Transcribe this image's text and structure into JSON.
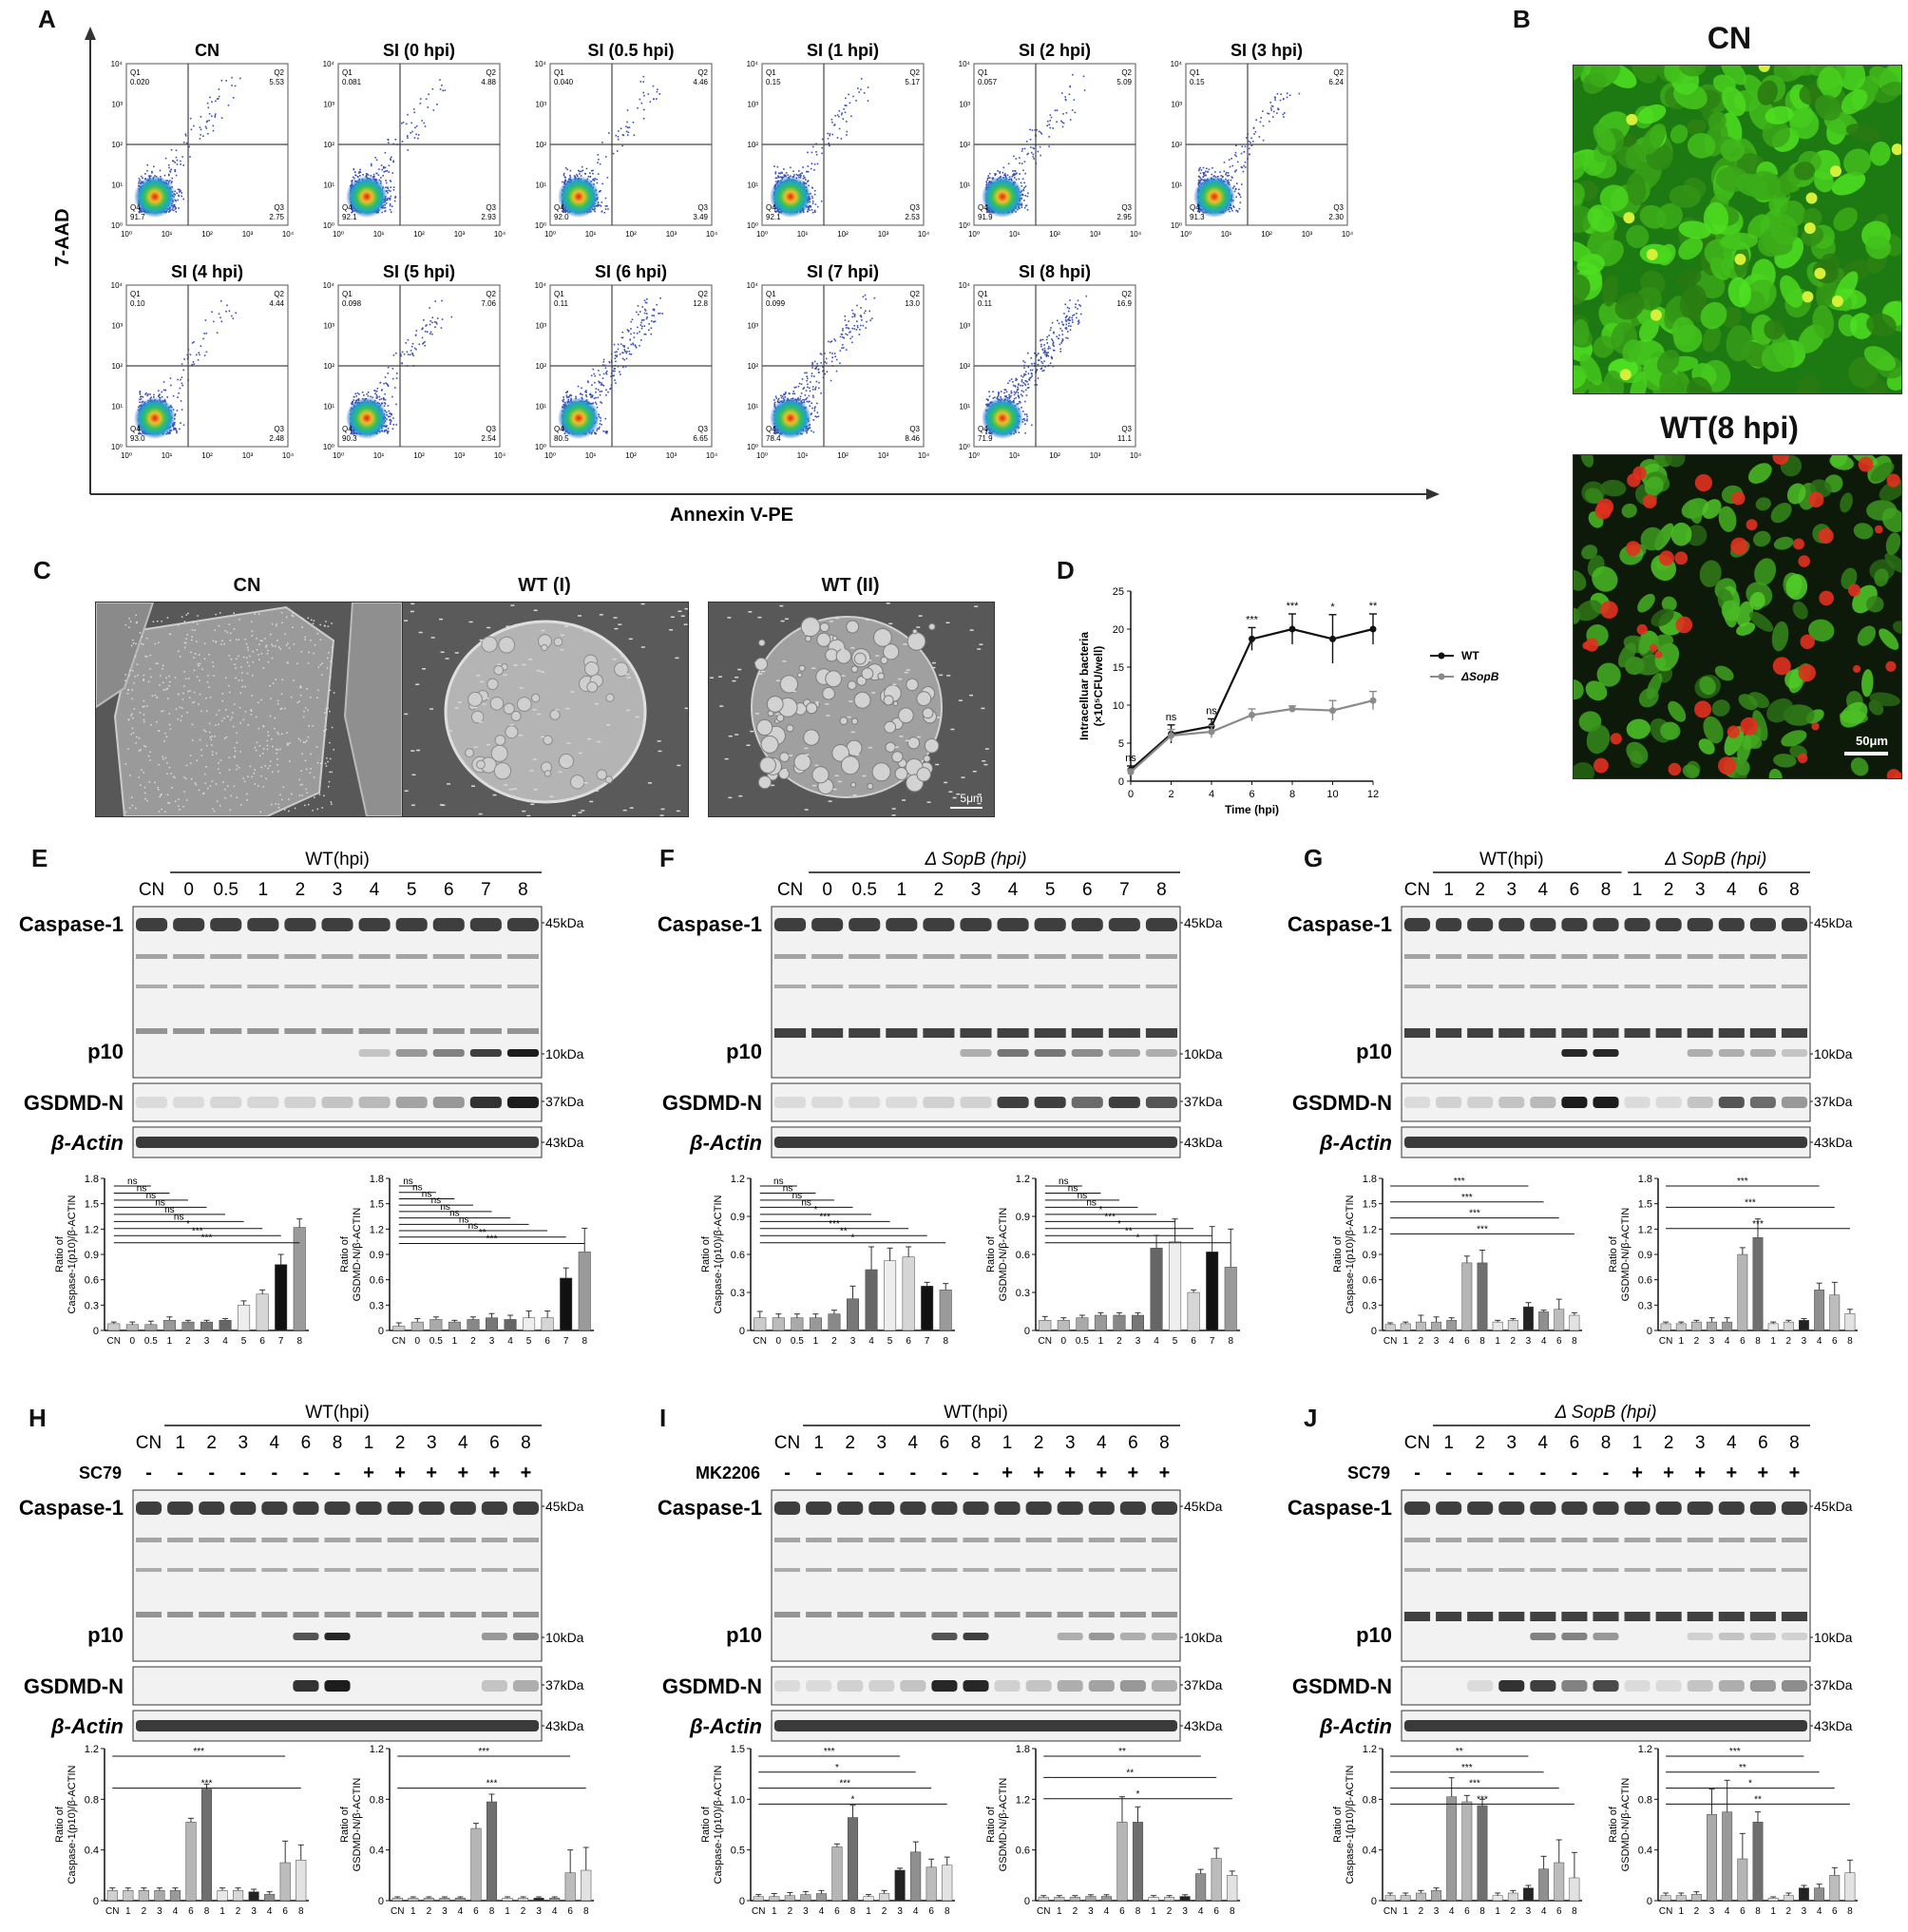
{
  "panels": {
    "A": "A",
    "B": "B",
    "C": "C",
    "D": "D",
    "E": "E",
    "F": "F",
    "G": "G",
    "H": "H",
    "I": "I",
    "J": "J"
  },
  "flow": {
    "y_axis": "7-AAD",
    "x_axis": "Annexin V-PE",
    "ticks": [
      "10⁰",
      "10¹",
      "10²",
      "10³",
      "10⁴"
    ],
    "quadrants": [
      "Q1",
      "Q2",
      "Q3",
      "Q4"
    ],
    "plots": [
      {
        "title": "CN",
        "q1": "0.020",
        "q2": "5.53",
        "q3": "2.75",
        "q4": "91.7"
      },
      {
        "title": "SI (0 hpi)",
        "q1": "0.081",
        "q2": "4.88",
        "q3": "2.93",
        "q4": "92.1"
      },
      {
        "title": "SI (0.5 hpi)",
        "q1": "0.040",
        "q2": "4.46",
        "q3": "3.49",
        "q4": "92.0"
      },
      {
        "title": "SI (1 hpi)",
        "q1": "0.15",
        "q2": "5.17",
        "q3": "2.53",
        "q4": "92.1"
      },
      {
        "title": "SI (2 hpi)",
        "q1": "0.057",
        "q2": "5.09",
        "q3": "2.95",
        "q4": "91.9"
      },
      {
        "title": "SI (3 hpi)",
        "q1": "0.15",
        "q2": "6.24",
        "q3": "2.30",
        "q4": "91.3"
      },
      {
        "title": "SI (4 hpi)",
        "q1": "0.10",
        "q2": "4.44",
        "q3": "2.48",
        "q4": "93.0"
      },
      {
        "title": "SI (5 hpi)",
        "q1": "0.098",
        "q2": "7.06",
        "q3": "2.54",
        "q4": "90.3"
      },
      {
        "title": "SI (6 hpi)",
        "q1": "0.11",
        "q2": "12.8",
        "q3": "6.65",
        "q4": "80.5"
      },
      {
        "title": "SI (7 hpi)",
        "q1": "0.099",
        "q2": "13.0",
        "q3": "8.46",
        "q4": "78.4"
      },
      {
        "title": "SI (8 hpi)",
        "q1": "0.11",
        "q2": "16.9",
        "q3": "11.1",
        "q4": "71.9"
      }
    ]
  },
  "micro": {
    "cn": "CN",
    "wt": "WT(8 hpi)",
    "scale": "50μm"
  },
  "sem": {
    "cn": "CN",
    "wt1": "WT (I)",
    "wt2": "WT (II)",
    "scale": "5μm"
  },
  "chart_data": [
    {
      "type": "line",
      "ylabel": "Intracelluar bacteria (×10⁵CFU/well)",
      "xlabel": "Time (hpi)",
      "x": [
        0,
        2,
        4,
        6,
        8,
        10,
        12
      ],
      "ylim": [
        0,
        25
      ],
      "yticks": [
        0,
        5,
        10,
        15,
        20,
        25
      ],
      "series": [
        {
          "name": "WT",
          "values": [
            1.5,
            6.2,
            7.2,
            18.7,
            20.0,
            18.7,
            20.0
          ],
          "err": [
            0.5,
            1.2,
            1.0,
            1.5,
            2.0,
            3.2,
            2.0
          ],
          "color": "#111111"
        },
        {
          "name": "ΔSopB",
          "values": [
            1.2,
            6.0,
            6.5,
            8.7,
            9.5,
            9.3,
            10.6
          ],
          "err": [
            0.4,
            0.8,
            0.8,
            0.8,
            0.4,
            1.3,
            1.2
          ],
          "color": "#8a8a8a"
        }
      ],
      "significance": [
        "ns",
        "ns",
        "ns",
        "***",
        "***",
        "*",
        "**"
      ]
    }
  ],
  "blots": {
    "mw": {
      "m45": "45kDa",
      "m10": "10kDa",
      "m37": "37kDa",
      "m43": "43kDa"
    },
    "bands": {
      "casp": "Caspase-1",
      "p10": "p10",
      "gsdmd": "GSDMD-N",
      "actin": "β-Actin"
    },
    "E": {
      "group": "WT(hpi)",
      "lanes": [
        "CN",
        "0",
        "0.5",
        "1",
        "2",
        "3",
        "4",
        "5",
        "6",
        "7",
        "8"
      ]
    },
    "F": {
      "group": "Δ SopB (hpi)",
      "lanes": [
        "CN",
        "0",
        "0.5",
        "1",
        "2",
        "3",
        "4",
        "5",
        "6",
        "7",
        "8"
      ]
    },
    "G": {
      "group1": "WT(hpi)",
      "group2": "Δ SopB (hpi)",
      "lanes": [
        "CN",
        "1",
        "2",
        "3",
        "4",
        "6",
        "8",
        "1",
        "2",
        "3",
        "4",
        "6",
        "8"
      ]
    },
    "H": {
      "group": "WT(hpi)",
      "treat": "SC79",
      "lanes": [
        "CN",
        "1",
        "2",
        "3",
        "4",
        "6",
        "8",
        "1",
        "2",
        "3",
        "4",
        "6",
        "8"
      ],
      "signs": [
        "-",
        "-",
        "-",
        "-",
        "-",
        "-",
        "-",
        "+",
        "+",
        "+",
        "+",
        "+",
        "+"
      ]
    },
    "I": {
      "group": "WT(hpi)",
      "treat": "MK2206",
      "lanes": [
        "CN",
        "1",
        "2",
        "3",
        "4",
        "6",
        "8",
        "1",
        "2",
        "3",
        "4",
        "6",
        "8"
      ],
      "signs": [
        "-",
        "-",
        "-",
        "-",
        "-",
        "-",
        "-",
        "+",
        "+",
        "+",
        "+",
        "+",
        "+"
      ]
    },
    "J": {
      "group": "Δ SopB (hpi)",
      "treat": "SC79",
      "lanes": [
        "CN",
        "1",
        "2",
        "3",
        "4",
        "6",
        "8",
        "1",
        "2",
        "3",
        "4",
        "6",
        "8"
      ],
      "signs": [
        "-",
        "-",
        "-",
        "-",
        "-",
        "-",
        "-",
        "+",
        "+",
        "+",
        "+",
        "+",
        "+"
      ]
    }
  },
  "bars": {
    "ylab_casp": "Ratio of Caspase-1(p10)/β-ACTIN",
    "ylab_gsdmd": "Ratio of GSDMD-N/β-ACTIN",
    "E1": {
      "cats": [
        "CN",
        "0",
        "0.5",
        "1",
        "2",
        "3",
        "4",
        "5",
        "6",
        "7",
        "8"
      ],
      "values": [
        0.08,
        0.07,
        0.07,
        0.12,
        0.1,
        0.1,
        0.12,
        0.3,
        0.43,
        0.78,
        1.22
      ],
      "err": [
        0.02,
        0.03,
        0.04,
        0.04,
        0.02,
        0.02,
        0.02,
        0.05,
        0.05,
        0.12,
        0.1
      ],
      "ylim": [
        0,
        1.8
      ],
      "ticks": [
        "0",
        "0.3",
        "0.6",
        "0.9",
        "1.2",
        "1.5",
        "1.8"
      ],
      "sig": [
        "ns",
        "ns",
        "ns",
        "ns",
        "ns",
        "ns",
        "*",
        "***",
        "***"
      ]
    },
    "E2": {
      "cats": [
        "CN",
        "0",
        "0.5",
        "1",
        "2",
        "3",
        "4",
        "5",
        "6",
        "7",
        "8"
      ],
      "values": [
        0.05,
        0.1,
        0.13,
        0.1,
        0.13,
        0.15,
        0.13,
        0.15,
        0.15,
        0.62,
        0.93
      ],
      "err": [
        0.04,
        0.04,
        0.03,
        0.02,
        0.03,
        0.05,
        0.05,
        0.08,
        0.08,
        0.12,
        0.28
      ],
      "ylim": [
        0,
        1.8
      ],
      "ticks": [
        "0",
        "0.3",
        "0.6",
        "0.9",
        "1.2",
        "1.5",
        "1.8"
      ],
      "sig": [
        "ns",
        "ns",
        "ns",
        "ns",
        "ns",
        "ns",
        "ns",
        "ns",
        "**",
        "***"
      ]
    },
    "F1": {
      "cats": [
        "CN",
        "0",
        "0.5",
        "1",
        "2",
        "3",
        "4",
        "5",
        "6",
        "7",
        "8"
      ],
      "values": [
        0.1,
        0.1,
        0.1,
        0.1,
        0.13,
        0.25,
        0.48,
        0.55,
        0.58,
        0.35,
        0.32
      ],
      "err": [
        0.05,
        0.03,
        0.03,
        0.03,
        0.03,
        0.1,
        0.18,
        0.1,
        0.08,
        0.03,
        0.05
      ],
      "ylim": [
        0,
        1.2
      ],
      "ticks": [
        "0",
        "0.3",
        "0.6",
        "0.9",
        "1.2"
      ],
      "sig": [
        "ns",
        "ns",
        "ns",
        "ns",
        "*",
        "***",
        "***",
        "**",
        "*"
      ]
    },
    "F2": {
      "cats": [
        "CN",
        "0",
        "0.5",
        "1",
        "2",
        "3",
        "4",
        "5",
        "6",
        "7",
        "8"
      ],
      "values": [
        0.08,
        0.08,
        0.1,
        0.12,
        0.12,
        0.12,
        0.65,
        0.7,
        0.3,
        0.62,
        0.5
      ],
      "err": [
        0.03,
        0.02,
        0.02,
        0.02,
        0.02,
        0.02,
        0.1,
        0.18,
        0.02,
        0.2,
        0.3
      ],
      "ylim": [
        0,
        1.2
      ],
      "ticks": [
        "0",
        "0.3",
        "0.6",
        "0.9",
        "1.2"
      ],
      "sig": [
        "ns",
        "ns",
        "ns",
        "ns",
        "*",
        "***",
        "*",
        "**",
        "*"
      ]
    },
    "G1": {
      "cats": [
        "CN",
        "1",
        "2",
        "3",
        "4",
        "6",
        "8",
        "1",
        "2",
        "3",
        "4",
        "6",
        "8"
      ],
      "values": [
        0.07,
        0.08,
        0.1,
        0.1,
        0.12,
        0.8,
        0.8,
        0.1,
        0.12,
        0.28,
        0.22,
        0.25,
        0.18
      ],
      "err": [
        0.02,
        0.02,
        0.08,
        0.06,
        0.03,
        0.08,
        0.15,
        0.02,
        0.02,
        0.05,
        0.02,
        0.12,
        0.03
      ],
      "ylim": [
        0,
        1.8
      ],
      "ticks": [
        "0",
        "0.3",
        "0.6",
        "0.9",
        "1.2",
        "1.5",
        "1.8"
      ],
      "sig": [
        "***",
        "***",
        "***",
        "***"
      ]
    },
    "G2": {
      "cats": [
        "CN",
        "1",
        "2",
        "3",
        "4",
        "6",
        "8",
        "1",
        "2",
        "3",
        "4",
        "6",
        "8"
      ],
      "values": [
        0.08,
        0.08,
        0.1,
        0.1,
        0.1,
        0.9,
        1.1,
        0.08,
        0.1,
        0.12,
        0.48,
        0.42,
        0.2
      ],
      "err": [
        0.02,
        0.02,
        0.02,
        0.05,
        0.05,
        0.08,
        0.22,
        0.02,
        0.02,
        0.02,
        0.08,
        0.15,
        0.05
      ],
      "ylim": [
        0,
        1.8
      ],
      "ticks": [
        "0",
        "0.3",
        "0.6",
        "0.9",
        "1.2",
        "1.5",
        "1.8"
      ],
      "sig": [
        "***",
        "***",
        "***"
      ]
    },
    "H1": {
      "cats": [
        "CN",
        "1",
        "2",
        "3",
        "4",
        "6",
        "8",
        "1",
        "2",
        "3",
        "4",
        "6",
        "8"
      ],
      "values": [
        0.08,
        0.08,
        0.08,
        0.08,
        0.08,
        0.62,
        0.88,
        0.08,
        0.08,
        0.07,
        0.05,
        0.3,
        0.32
      ],
      "err": [
        0.02,
        0.02,
        0.02,
        0.02,
        0.02,
        0.03,
        0.04,
        0.02,
        0.02,
        0.02,
        0.02,
        0.17,
        0.12
      ],
      "ylim": [
        0,
        1.2
      ],
      "ticks": [
        "0",
        "0.4",
        "0.8",
        "1.2"
      ],
      "sig": [
        "***",
        "***"
      ]
    },
    "H2": {
      "cats": [
        "CN",
        "1",
        "2",
        "3",
        "4",
        "6",
        "8",
        "1",
        "2",
        "3",
        "4",
        "6",
        "8"
      ],
      "values": [
        0.02,
        0.02,
        0.02,
        0.02,
        0.02,
        0.57,
        0.78,
        0.02,
        0.02,
        0.02,
        0.02,
        0.22,
        0.24
      ],
      "err": [
        0.01,
        0.01,
        0.01,
        0.01,
        0.01,
        0.04,
        0.06,
        0.01,
        0.01,
        0.01,
        0.01,
        0.18,
        0.18
      ],
      "ylim": [
        0,
        1.2
      ],
      "ticks": [
        "0",
        "0.4",
        "0.8",
        "1.2"
      ],
      "sig": [
        "***",
        "***"
      ]
    },
    "I1": {
      "cats": [
        "CN",
        "1",
        "2",
        "3",
        "4",
        "6",
        "8",
        "1",
        "2",
        "3",
        "4",
        "6",
        "8"
      ],
      "values": [
        0.04,
        0.04,
        0.05,
        0.06,
        0.07,
        0.53,
        0.82,
        0.04,
        0.07,
        0.3,
        0.48,
        0.33,
        0.35
      ],
      "err": [
        0.02,
        0.03,
        0.03,
        0.03,
        0.03,
        0.03,
        0.12,
        0.02,
        0.03,
        0.02,
        0.1,
        0.08,
        0.08
      ],
      "ylim": [
        0,
        1.5
      ],
      "ticks": [
        "0",
        "0.5",
        "1.0",
        "1.5"
      ],
      "sig": [
        "***",
        "*",
        "***",
        "*"
      ]
    },
    "I2": {
      "cats": [
        "CN",
        "1",
        "2",
        "3",
        "4",
        "6",
        "8",
        "1",
        "2",
        "3",
        "4",
        "6",
        "8"
      ],
      "values": [
        0.04,
        0.04,
        0.04,
        0.05,
        0.05,
        0.93,
        0.93,
        0.04,
        0.04,
        0.05,
        0.32,
        0.5,
        0.3
      ],
      "err": [
        0.02,
        0.02,
        0.02,
        0.02,
        0.02,
        0.3,
        0.18,
        0.02,
        0.02,
        0.02,
        0.05,
        0.12,
        0.05
      ],
      "ylim": [
        0,
        1.8
      ],
      "ticks": [
        "0",
        "0.6",
        "1.2",
        "1.8"
      ],
      "sig": [
        "**",
        "**",
        "*"
      ]
    },
    "J1": {
      "cats": [
        "CN",
        "1",
        "2",
        "3",
        "4",
        "6",
        "8",
        "1",
        "2",
        "3",
        "4",
        "6",
        "8"
      ],
      "values": [
        0.04,
        0.04,
        0.06,
        0.08,
        0.82,
        0.78,
        0.75,
        0.04,
        0.06,
        0.1,
        0.25,
        0.3,
        0.18
      ],
      "err": [
        0.02,
        0.02,
        0.02,
        0.02,
        0.15,
        0.05,
        0.05,
        0.02,
        0.02,
        0.02,
        0.1,
        0.18,
        0.2
      ],
      "ylim": [
        0,
        1.2
      ],
      "ticks": [
        "0",
        "0.4",
        "0.8",
        "1.2"
      ],
      "sig": [
        "**",
        "***",
        "***",
        "***"
      ]
    },
    "J2": {
      "cats": [
        "CN",
        "1",
        "2",
        "3",
        "4",
        "6",
        "8",
        "1",
        "2",
        "3",
        "4",
        "6",
        "8"
      ],
      "values": [
        0.04,
        0.04,
        0.05,
        0.68,
        0.7,
        0.33,
        0.62,
        0.02,
        0.04,
        0.1,
        0.1,
        0.2,
        0.22
      ],
      "err": [
        0.02,
        0.02,
        0.02,
        0.2,
        0.25,
        0.2,
        0.08,
        0.01,
        0.02,
        0.02,
        0.03,
        0.06,
        0.1
      ],
      "ylim": [
        0,
        1.2
      ],
      "ticks": [
        "0",
        "0.4",
        "0.8",
        "1.2"
      ],
      "sig": [
        "***",
        "**",
        "*",
        "**"
      ]
    }
  }
}
